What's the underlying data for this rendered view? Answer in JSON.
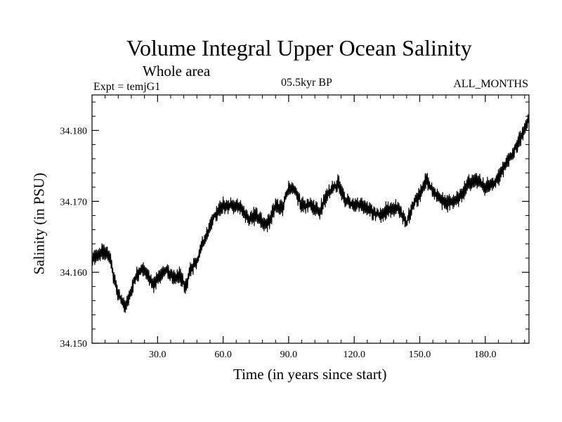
{
  "chart_data": {
    "type": "line",
    "title": "Volume Integral Upper Ocean Salinity",
    "subtitle": "Whole area",
    "label_left": "Expt = temjG1",
    "label_center": "05.5kyr BP",
    "label_right": "ALL_MONTHS",
    "xlabel": "Time (in years since start)",
    "ylabel": "Salinity (in PSU)",
    "xlim": [
      0,
      200
    ],
    "ylim": [
      34.15,
      34.185
    ],
    "xticks": [
      30,
      60,
      90,
      120,
      150,
      180
    ],
    "xtick_labels": [
      "30.0",
      "60.0",
      "90.0",
      "120.0",
      "150.0",
      "180.0"
    ],
    "yticks": [
      34.15,
      34.16,
      34.17,
      34.18
    ],
    "ytick_labels": [
      "34.150",
      "34.160",
      "34.170",
      "34.180"
    ],
    "grid": false,
    "series": [
      {
        "name": "Salinity",
        "noise_amplitude": 0.0012,
        "x": [
          0,
          2,
          5,
          8,
          10,
          12,
          15,
          17,
          20,
          23,
          26,
          28,
          31,
          34,
          37,
          40,
          43,
          45,
          48,
          50,
          53,
          56,
          60,
          64,
          68,
          72,
          75,
          78,
          81,
          84,
          87,
          90,
          93,
          96,
          100,
          104,
          107,
          110,
          113,
          116,
          120,
          124,
          128,
          132,
          136,
          140,
          144,
          147,
          150,
          153,
          156,
          159,
          162,
          165,
          168,
          172,
          176,
          180,
          184,
          188,
          192,
          196,
          200
        ],
        "values": [
          34.1615,
          34.1625,
          34.163,
          34.1625,
          34.159,
          34.157,
          34.155,
          34.1565,
          34.1595,
          34.1605,
          34.1595,
          34.158,
          34.1595,
          34.1605,
          34.159,
          34.1595,
          34.158,
          34.1605,
          34.1615,
          34.1635,
          34.1655,
          34.168,
          34.1695,
          34.1695,
          34.169,
          34.1675,
          34.168,
          34.167,
          34.167,
          34.1695,
          34.169,
          34.172,
          34.1715,
          34.1695,
          34.1695,
          34.1685,
          34.1705,
          34.172,
          34.1725,
          34.17,
          34.1695,
          34.1695,
          34.1685,
          34.168,
          34.169,
          34.169,
          34.167,
          34.1695,
          34.171,
          34.173,
          34.1715,
          34.1705,
          34.1695,
          34.17,
          34.1705,
          34.1725,
          34.173,
          34.172,
          34.1725,
          34.1745,
          34.1765,
          34.179,
          34.1815
        ]
      }
    ]
  }
}
